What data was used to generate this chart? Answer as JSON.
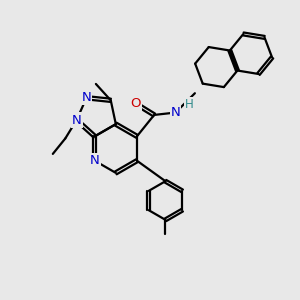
{
  "background_color": "#e8e8e8",
  "bond_color": "#000000",
  "n_color": "#0000cc",
  "o_color": "#cc0000",
  "h_color": "#2f8b8b",
  "line_width": 1.6,
  "font_size": 8.5,
  "fig_width": 3.0,
  "fig_height": 3.0,
  "dpi": 100,
  "xlim": [
    0,
    10
  ],
  "ylim": [
    0,
    10
  ]
}
